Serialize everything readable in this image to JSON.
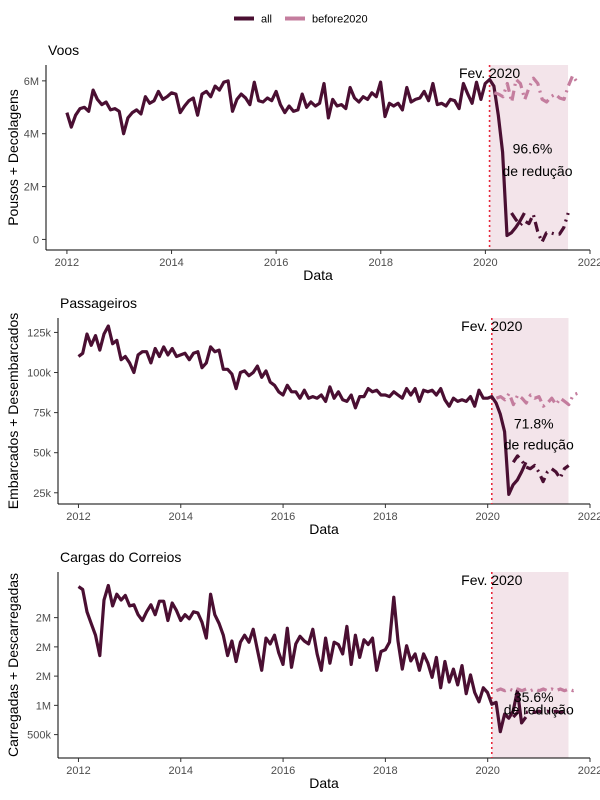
{
  "legend": {
    "items": [
      {
        "label": "all",
        "color": "#4a0f32"
      },
      {
        "label": "before2020",
        "color": "#c47d9e"
      }
    ]
  },
  "colors": {
    "all": "#4a0f32",
    "before2020": "#c47d9e",
    "band": "#f3e4ea",
    "marker": "#e8283c"
  },
  "chart_data": [
    {
      "type": "line",
      "title": "Voos",
      "xlabel": "Data",
      "ylabel": "Pousos + Decolagens",
      "xlim": [
        2011.6,
        2022.0
      ],
      "ylim": [
        -0.4,
        6.6
      ],
      "xticks": [
        2012,
        2014,
        2016,
        2018,
        2020,
        2022
      ],
      "xtick_labels": [
        "2012",
        "2014",
        "2016",
        "2018",
        "2020",
        "2022"
      ],
      "yticks": [
        0,
        2,
        4,
        6
      ],
      "ytick_labels": [
        "0",
        "2M",
        "4M",
        "6M"
      ],
      "marker": {
        "x": 2020.08,
        "label": "Fev. 2020"
      },
      "annotation": {
        "line1": "96.6%",
        "line2": "de redução",
        "x": 2020.9,
        "y1": 3.25,
        "y2": 2.4
      },
      "band": {
        "x_start": 2020.08,
        "x_end": 2021.58
      },
      "series": [
        {
          "name": "all",
          "style": "solid",
          "x0": 2012.0,
          "dx": 0.0833,
          "values": [
            4.8,
            4.25,
            4.7,
            4.95,
            5.0,
            4.85,
            5.65,
            5.3,
            5.1,
            5.2,
            4.9,
            4.95,
            4.85,
            4.0,
            4.6,
            4.8,
            4.9,
            4.75,
            5.4,
            5.15,
            5.25,
            5.6,
            5.3,
            5.4,
            5.55,
            5.5,
            4.8,
            5.05,
            5.25,
            5.35,
            4.7,
            5.5,
            5.6,
            5.4,
            5.8,
            5.65,
            5.95,
            6.0,
            4.85,
            5.3,
            5.5,
            5.35,
            5.1,
            5.95,
            5.25,
            5.2,
            5.35,
            5.25,
            5.6,
            5.1,
            4.8,
            5.05,
            4.85,
            4.9,
            5.5,
            5.0,
            5.2,
            5.05,
            5.15,
            5.9,
            4.6,
            5.3,
            5.05,
            5.1,
            4.95,
            5.75,
            5.35,
            5.2,
            5.4,
            5.3,
            5.55,
            5.4,
            5.95,
            4.65,
            5.15,
            5.05,
            5.15,
            4.9,
            5.75,
            5.2,
            5.3,
            5.35,
            5.6,
            5.25,
            5.9,
            5.1,
            5.15,
            5.05,
            5.3,
            5.25,
            4.95,
            5.9,
            5.5,
            5.15,
            5.95,
            5.3,
            5.9,
            6.05,
            5.8,
            4.7,
            3.3,
            0.15,
            0.25,
            0.45,
            0.7,
            1.0
          ]
        },
        {
          "name": "all",
          "style": "dashdot",
          "x0": 2020.5,
          "dx": 0.0833,
          "values": [
            1.0,
            0.75,
            0.55,
            0.7,
            0.6,
            0.95,
            0.3,
            -0.1,
            0.25,
            0.25,
            0.2,
            0.2,
            0.45,
            1.0
          ]
        },
        {
          "name": "before2020",
          "style": "dashdot",
          "x0": 2020.17,
          "dx": 0.0833,
          "values": [
            5.55,
            5.5,
            5.4,
            5.9,
            5.2,
            6.05,
            5.9,
            5.3,
            5.75,
            6.1,
            5.9,
            5.3,
            5.2,
            5.4,
            5.5,
            5.35,
            5.3,
            5.8,
            6.2,
            5.95
          ]
        }
      ]
    },
    {
      "type": "line",
      "title": "Passageiros",
      "xlabel": "Data",
      "ylabel": "Embarcados + Desembarcados",
      "xlim": [
        2011.6,
        2022.0
      ],
      "ylim": [
        18,
        134
      ],
      "xticks": [
        2012,
        2014,
        2016,
        2018,
        2020,
        2022
      ],
      "xtick_labels": [
        "2012",
        "2014",
        "2016",
        "2018",
        "2020",
        "2022"
      ],
      "yticks": [
        25,
        50,
        75,
        100,
        125
      ],
      "ytick_labels": [
        "25k",
        "50k",
        "75k",
        "100k",
        "125k"
      ],
      "marker": {
        "x": 2020.08,
        "label": "Fev. 2020"
      },
      "annotation": {
        "line1": "71.8%",
        "line2": "de redução",
        "x": 2020.9,
        "y1": 65,
        "y2": 52
      },
      "band": {
        "x_start": 2020.08,
        "x_end": 2021.58
      },
      "series": [
        {
          "name": "all",
          "style": "solid",
          "x0": 2012.0,
          "dx": 0.0833,
          "values": [
            110,
            112,
            124,
            117,
            123,
            114,
            124,
            129,
            118,
            120,
            108,
            110,
            106,
            100,
            111,
            113,
            113,
            106,
            115,
            110,
            116,
            111,
            115,
            110,
            111,
            112,
            108,
            112,
            113,
            103,
            106,
            116,
            113,
            114,
            102,
            102,
            99,
            90,
            100,
            101,
            98,
            100,
            104,
            97,
            101,
            94,
            92,
            88,
            86,
            92,
            88,
            88,
            84,
            89,
            84,
            85,
            84,
            86,
            82,
            91,
            84,
            88,
            83,
            82,
            86,
            78,
            85,
            85,
            90,
            88,
            89,
            86,
            86,
            85,
            88,
            86,
            84,
            90,
            86,
            90,
            82,
            89,
            88,
            89,
            86,
            90,
            83,
            79,
            84,
            82,
            83,
            82,
            85,
            79,
            89,
            84,
            84,
            85,
            81,
            74,
            63,
            24,
            30,
            33,
            38,
            44
          ]
        },
        {
          "name": "all",
          "style": "dashdot",
          "x0": 2020.5,
          "dx": 0.0833,
          "values": [
            44,
            48,
            45,
            41,
            40,
            42,
            38,
            32,
            38,
            40,
            38,
            34,
            40,
            42
          ]
        },
        {
          "name": "before2020",
          "style": "dashdot",
          "x0": 2020.17,
          "dx": 0.0833,
          "values": [
            84,
            85,
            83,
            87,
            80,
            86,
            84,
            81,
            86,
            84,
            85,
            79,
            81,
            84,
            80,
            84,
            82,
            80,
            86,
            87
          ]
        }
      ]
    },
    {
      "type": "line",
      "title": "Cargas do Correios",
      "xlabel": "Data",
      "ylabel": "Carregadas + Descarregadas",
      "xlim": [
        2011.6,
        2022.0
      ],
      "ylim": [
        0.1,
        3.28
      ],
      "xticks": [
        2012,
        2014,
        2016,
        2018,
        2020,
        2022
      ],
      "xtick_labels": [
        "2012",
        "2014",
        "2016",
        "2018",
        "2020",
        "2022"
      ],
      "yticks": [
        0.5,
        1.0,
        1.5,
        2.0,
        2.5
      ],
      "ytick_labels": [
        "500k",
        "1M",
        "2M",
        "2M",
        "2M"
      ],
      "marker": {
        "x": 2020.08,
        "label": "Fev. 2020"
      },
      "annotation": {
        "line1": "35.6%",
        "line2": "de redução",
        "x": 2020.9,
        "y1": 1.06,
        "y2": 0.84
      },
      "band": {
        "x_start": 2020.08,
        "x_end": 2021.58
      },
      "series": [
        {
          "name": "all",
          "style": "solid",
          "x0": 2012.0,
          "dx": 0.0833,
          "values": [
            3.03,
            2.98,
            2.6,
            2.4,
            2.2,
            1.85,
            2.8,
            3.05,
            2.7,
            2.9,
            2.8,
            2.88,
            2.7,
            2.72,
            2.55,
            2.45,
            2.6,
            2.72,
            2.55,
            2.78,
            2.78,
            2.45,
            2.75,
            2.62,
            2.45,
            2.55,
            2.48,
            2.6,
            2.58,
            2.42,
            2.15,
            2.9,
            2.55,
            2.4,
            2.2,
            1.85,
            2.1,
            1.75,
            2.08,
            2.2,
            2.08,
            2.3,
            1.95,
            1.6,
            2.15,
            2.05,
            2.2,
            1.9,
            1.7,
            2.32,
            1.65,
            2.05,
            2.18,
            2.1,
            2.05,
            2.3,
            1.88,
            1.6,
            2.15,
            1.72,
            2.08,
            2.04,
            1.88,
            2.35,
            1.7,
            2.2,
            1.82,
            2.12,
            2.04,
            2.15,
            1.6,
            1.92,
            1.95,
            2.08,
            2.85,
            2.1,
            1.62,
            2.02,
            1.76,
            1.88,
            1.6,
            1.88,
            1.72,
            1.48,
            1.82,
            1.3,
            1.75,
            1.4,
            1.62,
            1.35,
            1.68,
            1.2,
            1.52,
            1.22,
            1.06,
            1.3,
            1.22,
            1.02,
            1.05,
            0.55,
            0.85,
            0.78,
            0.9,
            1.25,
            0.7,
            0.8
          ]
        },
        {
          "name": "all",
          "style": "dashdot",
          "x0": 2020.5,
          "dx": 0.0833,
          "values": [
            0.8,
            0.88,
            0.9,
            0.88,
            0.9,
            0.88,
            0.9,
            0.88,
            0.9,
            0.88,
            0.9,
            0.88,
            0.9,
            0.88
          ]
        },
        {
          "name": "before2020",
          "style": "dashdot",
          "x0": 2020.17,
          "dx": 0.0833,
          "values": [
            1.25,
            1.28,
            1.25,
            1.28,
            1.25,
            1.28,
            1.25,
            1.28,
            1.25,
            1.28,
            1.25,
            1.28,
            1.25,
            1.28,
            1.25,
            1.28,
            1.25,
            1.28,
            1.25,
            1.28
          ]
        }
      ]
    }
  ]
}
